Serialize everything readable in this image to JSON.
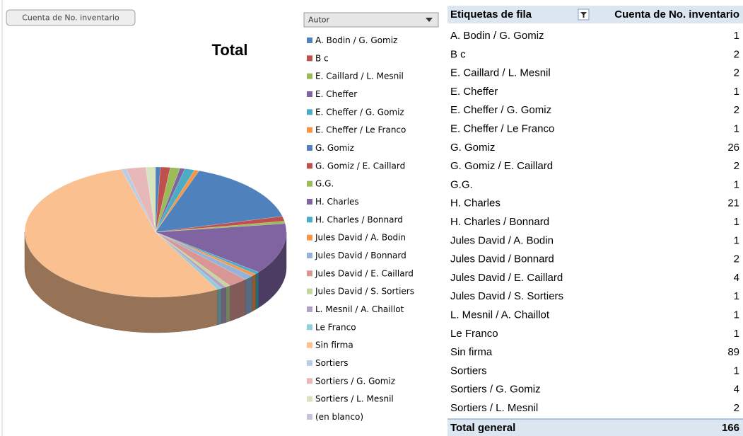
{
  "chart_data": {
    "type": "pie",
    "button": "Cuenta de No. inventario",
    "title": "Total",
    "legend_title": "Autor",
    "categories": [
      "A. Bodin / G. Gomiz",
      "B c",
      "E. Caillard / L. Mesnil",
      "E. Cheffer",
      "E. Cheffer / G. Gomiz",
      "E. Cheffer / Le Franco",
      "G. Gomiz",
      "G. Gomiz / E. Caillard",
      "G.G.",
      "H. Charles",
      "H. Charles / Bonnard",
      "Jules David / A. Bodin",
      "Jules David / Bonnard",
      "Jules David / E. Caillard",
      "Jules David / S. Sortiers",
      "L. Mesnil / A. Chaillot",
      "Le Franco",
      "Sin firma",
      "Sortiers",
      "Sortiers / G. Gomiz",
      "Sortiers / L. Mesnil",
      "(en blanco)"
    ],
    "values": [
      1,
      2,
      2,
      1,
      2,
      1,
      26,
      2,
      1,
      21,
      1,
      1,
      2,
      4,
      1,
      1,
      1,
      89,
      1,
      4,
      2,
      null
    ],
    "colors": [
      "#4F81BD",
      "#C0504D",
      "#9BBB59",
      "#8064A2",
      "#4BACC6",
      "#F79646",
      "#4F81BD",
      "#C0504D",
      "#9BBB59",
      "#8064A2",
      "#4BACC6",
      "#F79646",
      "#95B3D7",
      "#D99694",
      "#C3D69B",
      "#B3A2C7",
      "#93CDDD",
      "#FAC090",
      "#B9CDE5",
      "#E6B9B8",
      "#D7E4BD",
      "#CCC1DA"
    ]
  },
  "table": {
    "header": [
      "Etiquetas de fila",
      "Cuenta de No. inventario"
    ],
    "total_label": "Total general",
    "total": 166
  }
}
